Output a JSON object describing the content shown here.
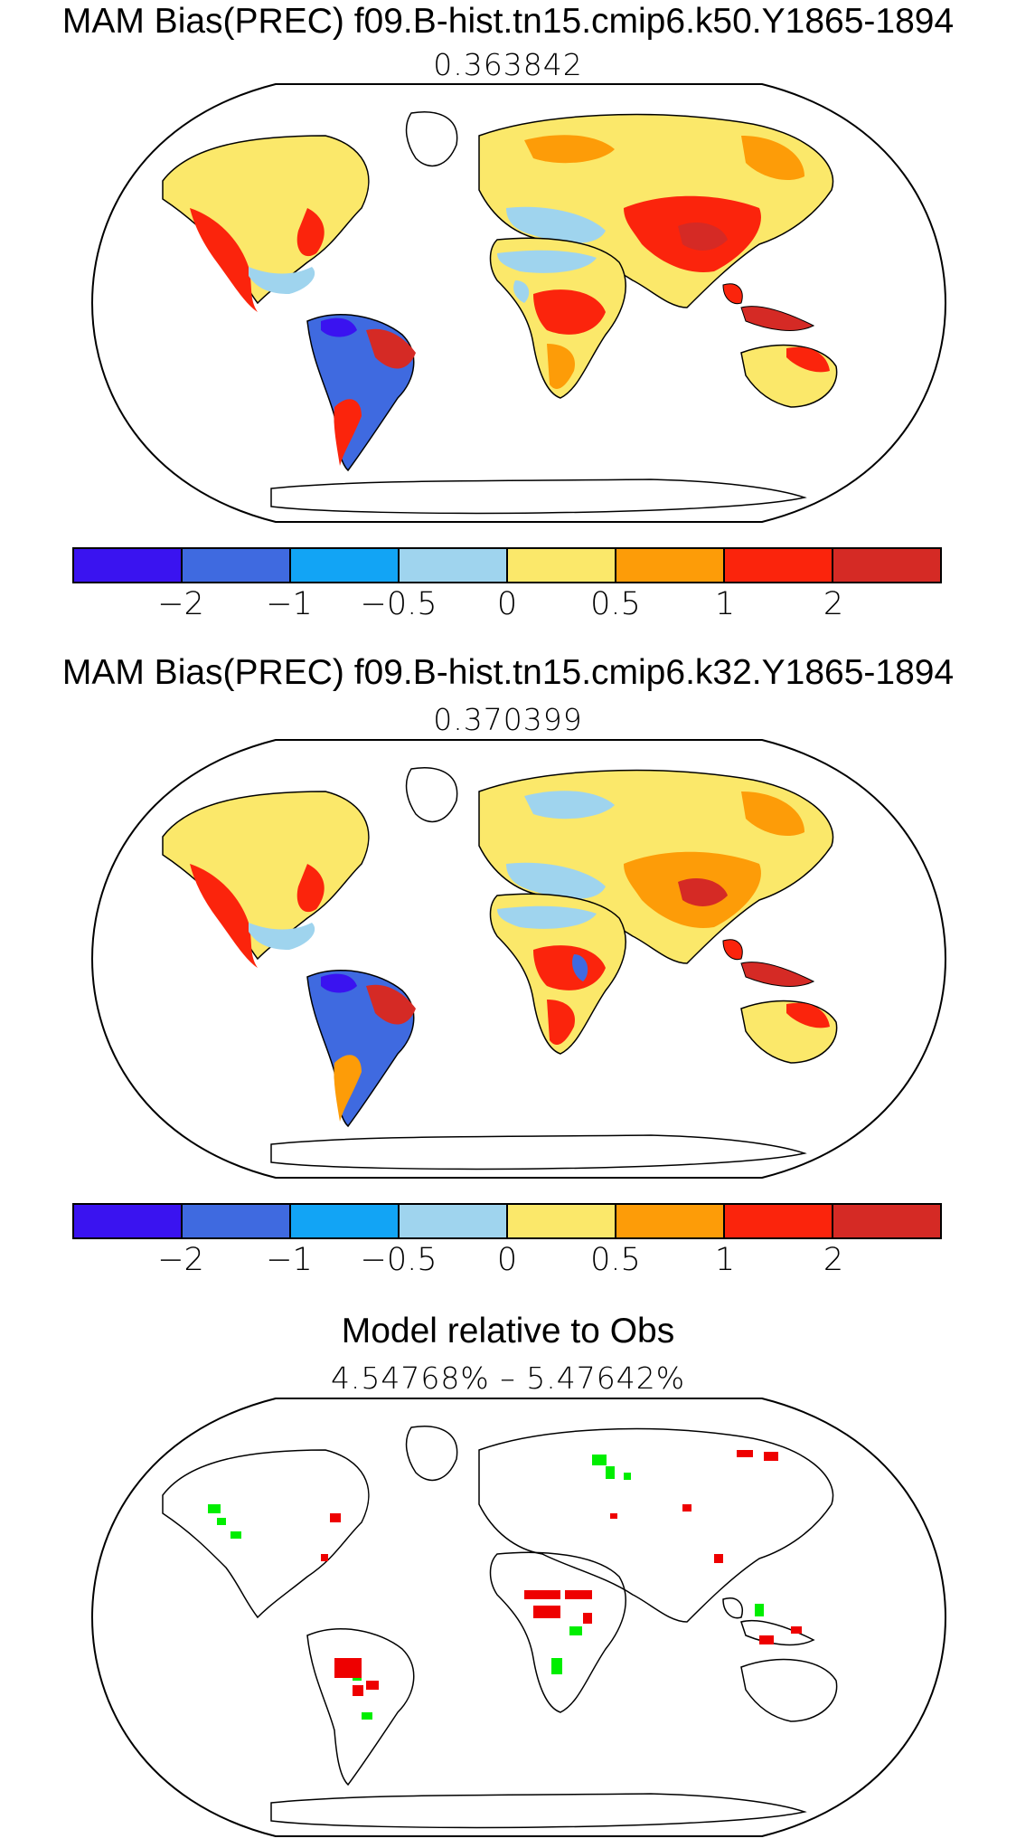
{
  "panels": [
    {
      "title": "MAM Bias(PREC) f09.B-hist.tn15.cmip6.k50.Y1865-1894",
      "subtitle": "0.363842"
    },
    {
      "title": "MAM Bias(PREC) f09.B-hist.tn15.cmip6.k32.Y1865-1894",
      "subtitle": "0.370399"
    },
    {
      "title": "Model relative to Obs",
      "subtitle": "4.54768% – 5.47642%"
    }
  ],
  "colorbar": {
    "tick_labels": [
      "−2",
      "−1",
      "−0.5",
      "0",
      "0.5",
      "1",
      "2"
    ],
    "colors": [
      "#3a13f0",
      "#3f6ae0",
      "#12a4f5",
      "#9fd4ee",
      "#fbe86a",
      "#fd9c08",
      "#fb240c",
      "#d52a25"
    ]
  },
  "map_colors": {
    "ocean": "#ffffff",
    "coast": "#000000",
    "relative_better": "#00ee00",
    "relative_worse": "#ee0000"
  }
}
